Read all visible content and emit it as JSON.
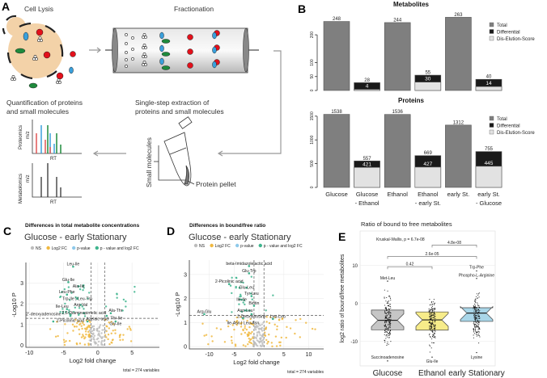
{
  "panel_labels": {
    "a": "A",
    "b": "B",
    "c": "C",
    "d": "D",
    "e": "E"
  },
  "panel_a": {
    "cell_lysis": "Cell Lysis",
    "fractionation": "Fractionation",
    "extraction": [
      "Single-step extraction of",
      "proteins and small molecules"
    ],
    "quantification": [
      "Quantification of proteins",
      "and small molecules"
    ],
    "small_molecules": "Small molecules",
    "protein_pellet": "Protein pellet",
    "proteomics": "Proteomics",
    "metabolomics": "Metabolomics",
    "mz": "m/z",
    "rt": "RT",
    "colors": {
      "cell": "#f3d2a8",
      "red": "#e3101b",
      "blue": "#3aa0dc",
      "green": "#1e8a3c"
    }
  },
  "chart_data": [
    {
      "id": "metabolites",
      "type": "bar",
      "title": "Metabolites",
      "categories": [
        [
          "Glucose"
        ],
        [
          "Glucose",
          "- Ethanol"
        ],
        [
          "Ethanol"
        ],
        [
          "Ethanol",
          "- early St."
        ],
        [
          "early St."
        ],
        [
          "early St.",
          "- Glucose"
        ]
      ],
      "totals": [
        248,
        28,
        244,
        55,
        263,
        40
      ],
      "kind": [
        "total",
        "diff",
        "total",
        "diff",
        "total",
        "diff"
      ],
      "dis_elution_score": [
        null,
        4,
        null,
        30,
        null,
        14
      ],
      "total_labels": [
        "248",
        "28",
        "244",
        "55",
        "263",
        "40"
      ],
      "inner_labels": [
        "",
        "4",
        "",
        "30",
        "",
        "14"
      ],
      "yticks": [
        "0",
        "50",
        "100",
        "200"
      ],
      "ytick_values": [
        0,
        50,
        100,
        200
      ],
      "ylim": [
        0,
        270
      ],
      "legend": [
        "Total",
        "Differential",
        "Dis-Elution-Score"
      ],
      "legend_colors": [
        "#7f7f7f",
        "#1a1a1a",
        "#e2e2e2"
      ],
      "legend_position": "top-right"
    },
    {
      "id": "proteins",
      "type": "bar",
      "title": "Proteins",
      "categories": [
        [
          "Glucose"
        ],
        [
          "Glucose",
          "- Ethanol"
        ],
        [
          "Ethanol"
        ],
        [
          "Ethanol",
          "- early St."
        ],
        [
          "early St."
        ],
        [
          "early St.",
          "- Glucose"
        ]
      ],
      "totals": [
        1538,
        557,
        1536,
        669,
        1312,
        755
      ],
      "kind": [
        "total",
        "diff",
        "total",
        "diff",
        "total",
        "diff"
      ],
      "dis_elution_score": [
        null,
        421,
        null,
        427,
        null,
        445
      ],
      "total_labels": [
        "1538",
        "557",
        "1536",
        "669",
        "1312",
        "755"
      ],
      "inner_labels": [
        "",
        "421",
        "",
        "427",
        "",
        "445"
      ],
      "yticks": [
        "0",
        "500",
        "1000",
        "1500"
      ],
      "ytick_values": [
        0,
        500,
        1000,
        1500
      ],
      "ylim": [
        0,
        1650
      ],
      "legend": [
        "Total",
        "Differential",
        "Dis-Elution-Score"
      ],
      "legend_colors": [
        "#7f7f7f",
        "#1a1a1a",
        "#e2e2e2"
      ],
      "legend_position": "top-right"
    },
    {
      "id": "volcano-c",
      "type": "scatter",
      "title": "Differences in total metabolite concentrations",
      "subtitle": "Glucose - early Stationary",
      "legend": [
        "NS",
        "Log2 FC",
        "p-value",
        "p - value and log2 FC"
      ],
      "legend_colors": [
        "#bdbdbd",
        "#f0b840",
        "#8ec9ea",
        "#3fb58e"
      ],
      "xlabel": "Log2 fold change",
      "ylabel": "-Log10 P",
      "xticks": [
        "-10",
        "-5",
        "0",
        "5"
      ],
      "xtick_values": [
        -10,
        -5,
        0,
        5
      ],
      "yticks": [
        "0",
        "1",
        "2",
        "3"
      ],
      "ytick_values": [
        0,
        1,
        2,
        3
      ],
      "xlim": [
        -10.5,
        9
      ],
      "ylim": [
        -0.1,
        4
      ],
      "fc_cutoff": 1,
      "p_cutoff": 1.3,
      "caption": "total = 274 variables",
      "labeled_points": [
        {
          "label": "Leu-Ile",
          "x": -3.6,
          "y": 3.8
        },
        {
          "label": "Glu-Ile",
          "x": -4.3,
          "y": 3.05
        },
        {
          "label": "Ala-Ile",
          "x": -2.8,
          "y": 2.85
        },
        {
          "label": "Leu-Phe",
          "x": -4.5,
          "y": 2.45
        },
        {
          "label": "Trp-Ile | Leu-Trp",
          "x": -3.0,
          "y": 2.25
        },
        {
          "label": "Arg-Val",
          "x": -2.5,
          "y": 1.95
        },
        {
          "label": "Ile-Leu",
          "x": -4.5,
          "y": 1.75
        },
        {
          "label": "2,6-Diaminopimelic acid",
          "x": -2.0,
          "y": 1.55
        },
        {
          "label": "Ala-Thr",
          "x": 1.9,
          "y": 1.55
        },
        {
          "label": "2-Picolinic acid",
          "x": -4.0,
          "y": 1.42
        },
        {
          "label": "Thr-Ile",
          "x": 1.3,
          "y": 1.42
        },
        {
          "label": "2'-deoxyadenosine",
          "x": -6.5,
          "y": 1.15
        },
        {
          "label": "Azelaic acid",
          "x": -1.5,
          "y": 1.15
        },
        {
          "label": "Gly-Ile",
          "x": 2.6,
          "y": 1.15
        }
      ]
    },
    {
      "id": "volcano-d",
      "type": "scatter",
      "title": "Differences in bound/free ratio",
      "subtitle": "Glucose - early Stationary",
      "legend": [
        "NS",
        "Log2 FC",
        "p-value",
        "p - value and log2 FC"
      ],
      "legend_colors": [
        "#bdbdbd",
        "#f0b840",
        "#8ec9ea",
        "#3fb58e"
      ],
      "xlabel": "Log2 fold change",
      "ylabel": "-Log10 P",
      "xticks": [
        "-10",
        "-5",
        "0",
        "5",
        "10"
      ],
      "xtick_values": [
        -10,
        -5,
        0,
        5,
        10
      ],
      "yticks": [
        "0",
        "1",
        "2",
        "3"
      ],
      "ytick_values": [
        0,
        1,
        2,
        3
      ],
      "xlim": [
        -14,
        13
      ],
      "ylim": [
        -0.1,
        3.6
      ],
      "fc_cutoff": 1,
      "p_cutoff": 1.3,
      "caption": "total = 274 variables",
      "labeled_points": [
        {
          "label": "beta-Imidazolelactic acid",
          "x": -2.0,
          "y": 3.35
        },
        {
          "label": "Glu-Trp",
          "x": -2.0,
          "y": 3.05
        },
        {
          "label": "2-Picolinic acid",
          "x": -6.0,
          "y": 2.6
        },
        {
          "label": "Glu-Leu",
          "x": -2.5,
          "y": 2.45
        },
        {
          "label": "Tyr-Leu",
          "x": -1.5,
          "y": 2.1
        },
        {
          "label": "Ile-Ile",
          "x": -3.5,
          "y": 1.95
        },
        {
          "label": "Biotin",
          "x": -1.0,
          "y": 1.7
        },
        {
          "label": "Asp-Leu",
          "x": -2.8,
          "y": 1.5
        },
        {
          "label": "Arg-Glu",
          "x": -11.0,
          "y": 1.35
        },
        {
          "label": "2-Deoxyinosine",
          "x": -1.5,
          "y": 1.35
        },
        {
          "label": "Ile-Asn | Leu-Asn",
          "x": -3.2,
          "y": 1.18
        },
        {
          "label": "Leu-Leu",
          "x": 2.8,
          "y": 1.15
        }
      ]
    },
    {
      "id": "boxplot-e",
      "type": "box",
      "title": "Ratio of bound to free metabolites",
      "ylabel": "log2 ratio of bound/free metabolites",
      "categories": [
        "Glucose",
        "Ethanol",
        "early Stationary"
      ],
      "colors": [
        "#c6c6c6",
        "#f7ec8a",
        "#a9d6e8"
      ],
      "q1": [
        -7.0,
        -7.1,
        -4.8
      ],
      "median": [
        -4.5,
        -4.4,
        -2.6
      ],
      "q3": [
        -1.8,
        -2.3,
        -1.2
      ],
      "min": [
        -13,
        -14,
        -13
      ],
      "max": [
        5,
        3.8,
        5
      ],
      "yticks": [
        "-10",
        "0",
        "10"
      ],
      "ytick_values": [
        -10,
        0,
        10
      ],
      "ylim": [
        -16.5,
        19
      ],
      "kruskal": "Kruskal-Wallis, p = 6.7e-08",
      "comparisons": [
        {
          "pair": [
            0,
            1
          ],
          "label": "0.42",
          "y": 9.6
        },
        {
          "pair": [
            0,
            2
          ],
          "label": "2.6e-05",
          "y": 12.3
        },
        {
          "pair": [
            1,
            2
          ],
          "label": "4.8e-08",
          "y": 15.3
        }
      ],
      "labeled_points": [
        {
          "label": "Met-Leu",
          "group": 0,
          "y": 5.8,
          "ty": 6.7
        },
        {
          "label": "Succinoadenosine",
          "group": 0,
          "y": -15.2,
          "ty": -14.2
        },
        {
          "label": "Glu-Ile",
          "group": 1,
          "y": -14.2,
          "ty": -15.2
        },
        {
          "label": "Lysine",
          "group": 2,
          "y": -13.0,
          "ty": -14.2
        },
        {
          "label": "Trp-Phe",
          "group": 2,
          "y": 8.5,
          "ty": 9.5
        },
        {
          "label": "Phospho-L-Arginine",
          "group": 2,
          "y": 6.5,
          "ty": 7.4
        }
      ]
    }
  ]
}
